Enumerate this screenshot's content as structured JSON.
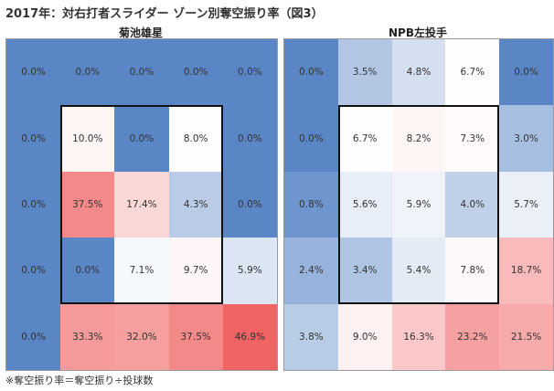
{
  "title": "2017年：対右打者スライダー ゾーン別奪空振り率（図3）",
  "footnote": "※奪空振り率＝奪空振り÷投球数",
  "colors": {
    "blue": "#5a86c6",
    "red": "#f06464",
    "white": "#ffffff",
    "zone_border": "#111111"
  },
  "chart_data": [
    {
      "type": "heatmap",
      "title": "菊池雄星",
      "rows": 5,
      "cols": 5,
      "strike_zone": "inner 3x3 (rows 2-4, cols 2-4)",
      "values": [
        [
          0.0,
          0.0,
          0.0,
          0.0,
          0.0
        ],
        [
          0.0,
          10.0,
          0.0,
          8.0,
          0.0
        ],
        [
          0.0,
          37.5,
          17.4,
          4.3,
          0.0
        ],
        [
          0.0,
          0.0,
          7.1,
          9.7,
          5.9
        ],
        [
          0.0,
          33.3,
          32.0,
          37.5,
          46.9
        ]
      ],
      "labels": [
        [
          "0.0%",
          "0.0%",
          "0.0%",
          "0.0%",
          "0.0%"
        ],
        [
          "0.0%",
          "10.0%",
          "0.0%",
          "8.0%",
          "0.0%"
        ],
        [
          "0.0%",
          "37.5%",
          "17.4%",
          "4.3%",
          "0.0%"
        ],
        [
          "0.0%",
          "0.0%",
          "7.1%",
          "9.7%",
          "5.9%"
        ],
        [
          "0.0%",
          "33.3%",
          "32.0%",
          "37.5%",
          "46.9%"
        ]
      ]
    },
    {
      "type": "heatmap",
      "title": "NPB左投手",
      "rows": 5,
      "cols": 5,
      "strike_zone": "inner 3x3 (rows 2-4, cols 2-4)",
      "values": [
        [
          0.0,
          3.5,
          4.8,
          6.7,
          0.0
        ],
        [
          0.0,
          6.7,
          8.2,
          7.3,
          3.0
        ],
        [
          0.8,
          5.6,
          5.9,
          4.0,
          5.7
        ],
        [
          2.4,
          3.4,
          5.4,
          7.8,
          18.7
        ],
        [
          3.8,
          9.0,
          16.3,
          23.2,
          21.5
        ]
      ],
      "labels": [
        [
          "0.0%",
          "3.5%",
          "4.8%",
          "6.7%",
          "0.0%"
        ],
        [
          "0.0%",
          "6.7%",
          "8.2%",
          "7.3%",
          "3.0%"
        ],
        [
          "0.8%",
          "5.6%",
          "5.9%",
          "4.0%",
          "5.7%"
        ],
        [
          "2.4%",
          "3.4%",
          "5.4%",
          "7.8%",
          "18.7%"
        ],
        [
          "3.8%",
          "9.0%",
          "16.3%",
          "23.2%",
          "21.5%"
        ]
      ]
    }
  ]
}
